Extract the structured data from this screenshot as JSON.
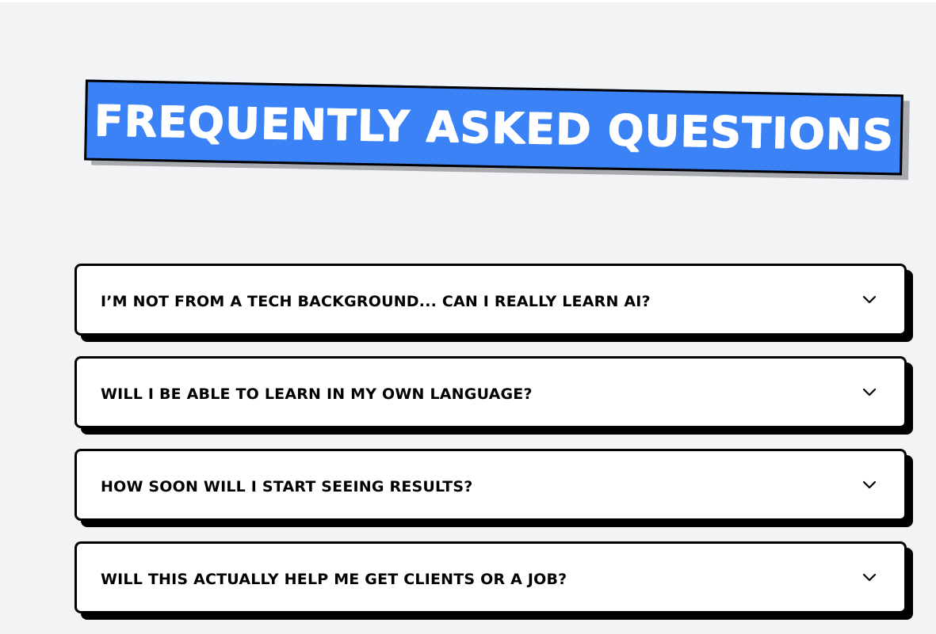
{
  "header": {
    "title": "FREQUENTLY ASKED QUESTIONS"
  },
  "faq": {
    "items": [
      {
        "question": "I’M NOT FROM A TECH BACKGROUND... CAN I REALLY LEARN AI?",
        "icon": "chevron-down-icon"
      },
      {
        "question": "WILL I BE ABLE TO LEARN IN MY OWN LANGUAGE?",
        "icon": "chevron-down-icon"
      },
      {
        "question": "HOW SOON WILL I START SEEING RESULTS?",
        "icon": "chevron-down-icon"
      },
      {
        "question": "WILL THIS ACTUALLY HELP ME GET CLIENTS OR A JOB?",
        "icon": "chevron-down-icon"
      }
    ]
  },
  "colors": {
    "background": "#f2f3f5",
    "banner": "#3b82f6",
    "border": "#000000",
    "card": "#ffffff"
  }
}
